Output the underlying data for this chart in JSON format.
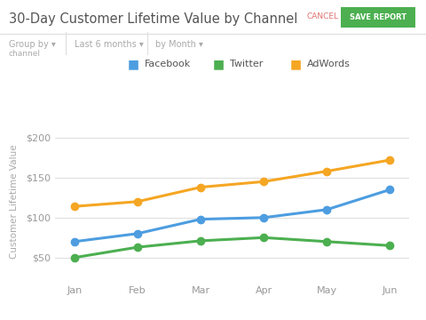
{
  "title": "30-Day Customer Lifetime Value by Channel",
  "cancel_text": "CANCEL",
  "save_text": "SAVE REPORT",
  "filter_text": [
    "Group by ▾",
    "channel",
    "Last 6 months ▾",
    "by Month ▾"
  ],
  "ylabel": "Customer Lifetime Value",
  "months": [
    "Jan",
    "Feb",
    "Mar",
    "Apr",
    "May",
    "Jun"
  ],
  "facebook": [
    70,
    80,
    98,
    100,
    110,
    135
  ],
  "twitter": [
    50,
    63,
    71,
    75,
    70,
    65
  ],
  "adwords": [
    114,
    120,
    138,
    145,
    158,
    172
  ],
  "facebook_color": "#4d9de0",
  "twitter_color": "#4caf50",
  "adwords_color": "#f5a623",
  "bg_color": "#ffffff",
  "plot_bg": "#ffffff",
  "grid_color": "#e0e0e0",
  "axis_label_color": "#aaaaaa",
  "tick_label_color": "#999999",
  "title_color": "#555555",
  "filter_color": "#aaaaaa",
  "ylim": [
    20,
    220
  ],
  "yticks": [
    50,
    100,
    150,
    200
  ],
  "line_width": 2.2,
  "marker_size": 6
}
